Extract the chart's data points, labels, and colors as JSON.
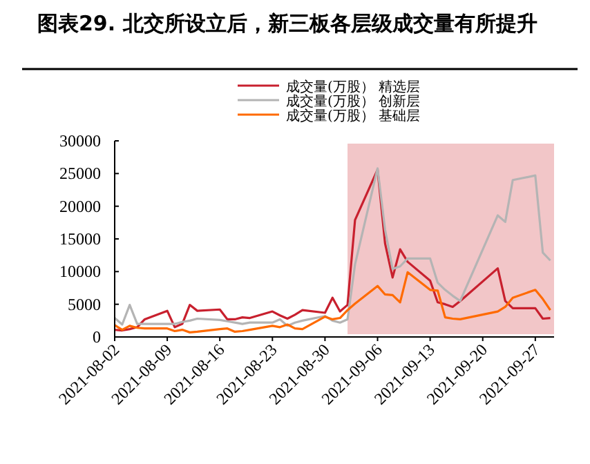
{
  "chart_data": {
    "type": "line",
    "title": "图表29. 北交所设立后，新三板各层级成交量有所提升",
    "x": [
      "2021-08-02",
      "2021-08-03",
      "2021-08-04",
      "2021-08-05",
      "2021-08-06",
      "2021-08-09",
      "2021-08-10",
      "2021-08-11",
      "2021-08-12",
      "2021-08-13",
      "2021-08-16",
      "2021-08-17",
      "2021-08-18",
      "2021-08-19",
      "2021-08-20",
      "2021-08-23",
      "2021-08-24",
      "2021-08-25",
      "2021-08-26",
      "2021-08-27",
      "2021-08-30",
      "2021-08-31",
      "2021-09-01",
      "2021-09-02",
      "2021-09-03",
      "2021-09-06",
      "2021-09-07",
      "2021-09-08",
      "2021-09-09",
      "2021-09-10",
      "2021-09-13",
      "2021-09-14",
      "2021-09-15",
      "2021-09-16",
      "2021-09-17",
      "2021-09-22",
      "2021-09-23",
      "2021-09-24",
      "2021-09-27",
      "2021-09-28",
      "2021-09-29"
    ],
    "series": [
      {
        "name": "成交量(万股） 精选层",
        "color": "#c8202e",
        "values": [
          1100,
          1000,
          1200,
          1500,
          2700,
          4000,
          1500,
          2000,
          4900,
          4000,
          4200,
          2700,
          2700,
          3000,
          2900,
          3900,
          3300,
          2800,
          3400,
          4100,
          3700,
          6000,
          3900,
          4900,
          17900,
          25600,
          14300,
          9100,
          13400,
          11500,
          8600,
          5300,
          5000,
          4600,
          5500,
          10500,
          5500,
          4400,
          4400,
          2800,
          2900
        ]
      },
      {
        "name": "成交量(万股） 创新层",
        "color": "#b4b4b4",
        "values": [
          2900,
          1900,
          4900,
          2000,
          2000,
          2000,
          2000,
          2300,
          2500,
          2800,
          2600,
          2400,
          2200,
          2000,
          2200,
          2200,
          2700,
          1700,
          2200,
          2500,
          3200,
          2500,
          2200,
          2700,
          11100,
          25800,
          16400,
          10400,
          10800,
          12000,
          12000,
          8300,
          7200,
          6300,
          5500,
          18600,
          17600,
          24000,
          24700,
          12900,
          11700
        ]
      },
      {
        "name": "成交量(万股） 基础层",
        "color": "#ff6a00",
        "values": [
          1800,
          1100,
          1700,
          1400,
          1300,
          1300,
          900,
          1100,
          700,
          800,
          1200,
          1300,
          800,
          900,
          1100,
          1700,
          1500,
          1900,
          1300,
          1200,
          3100,
          2700,
          2900,
          4100,
          5100,
          7800,
          6500,
          6400,
          5300,
          9900,
          7200,
          7100,
          3000,
          2800,
          2700,
          3900,
          4600,
          6000,
          7200,
          5800,
          4100
        ]
      }
    ],
    "xlim": [
      "2021-08-02",
      "2021-09-29T12:00"
    ],
    "xticks": [
      "2021-08-02",
      "2021-08-09",
      "2021-08-16",
      "2021-08-23",
      "2021-08-30",
      "2021-09-06",
      "2021-09-13",
      "2021-09-20",
      "2021-09-27"
    ],
    "ylim": [
      0,
      30000
    ],
    "yticks": [
      0,
      5000,
      10000,
      15000,
      20000,
      25000,
      30000
    ],
    "bands": [
      {
        "axis": "x",
        "from": "2021-09-02",
        "to": "2021-09-29T12:00",
        "color": "#f2c6c8"
      }
    ],
    "legend": "top",
    "grid": false,
    "line_style": "solid",
    "marker": "none"
  }
}
